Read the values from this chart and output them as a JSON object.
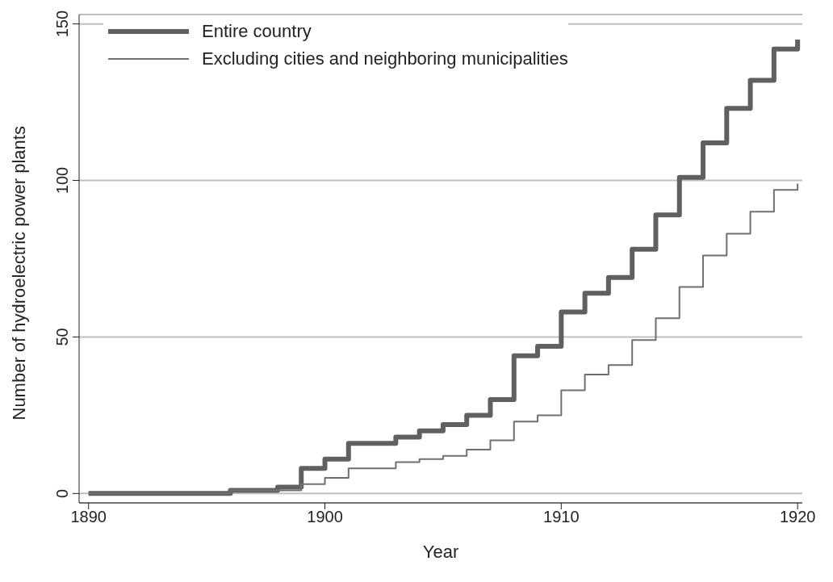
{
  "chart_data": {
    "type": "step",
    "xlabel": "Year",
    "ylabel": "Number of hydroelectric power plants",
    "x": [
      1890,
      1891,
      1892,
      1893,
      1894,
      1895,
      1896,
      1897,
      1898,
      1899,
      1900,
      1901,
      1902,
      1903,
      1904,
      1905,
      1906,
      1907,
      1908,
      1909,
      1910,
      1911,
      1912,
      1913,
      1914,
      1915,
      1916,
      1917,
      1918,
      1919,
      1920
    ],
    "series": [
      {
        "name": "Entire country",
        "color": "#606060",
        "values": [
          0,
          0,
          0,
          0,
          0,
          0,
          1,
          1,
          2,
          8,
          11,
          16,
          16,
          18,
          20,
          22,
          25,
          30,
          44,
          47,
          58,
          64,
          69,
          78,
          89,
          101,
          112,
          123,
          132,
          142,
          145
        ]
      },
      {
        "name": "Excluding cities and neighboring municipalities",
        "color": "#707070",
        "values": [
          0,
          0,
          0,
          0,
          0,
          0,
          1,
          1,
          1,
          3,
          5,
          8,
          8,
          10,
          11,
          12,
          14,
          17,
          23,
          25,
          33,
          38,
          41,
          49,
          56,
          66,
          76,
          83,
          90,
          97,
          99
        ]
      }
    ],
    "xlim": [
      1889.6,
      1920.2
    ],
    "xticks": [
      1890,
      1900,
      1910,
      1920
    ],
    "ylim": [
      -3,
      153
    ],
    "yticks": [
      0,
      50,
      100,
      150
    ],
    "grid": "y",
    "legend": "top left",
    "marker": "none",
    "line_style": "solid"
  }
}
